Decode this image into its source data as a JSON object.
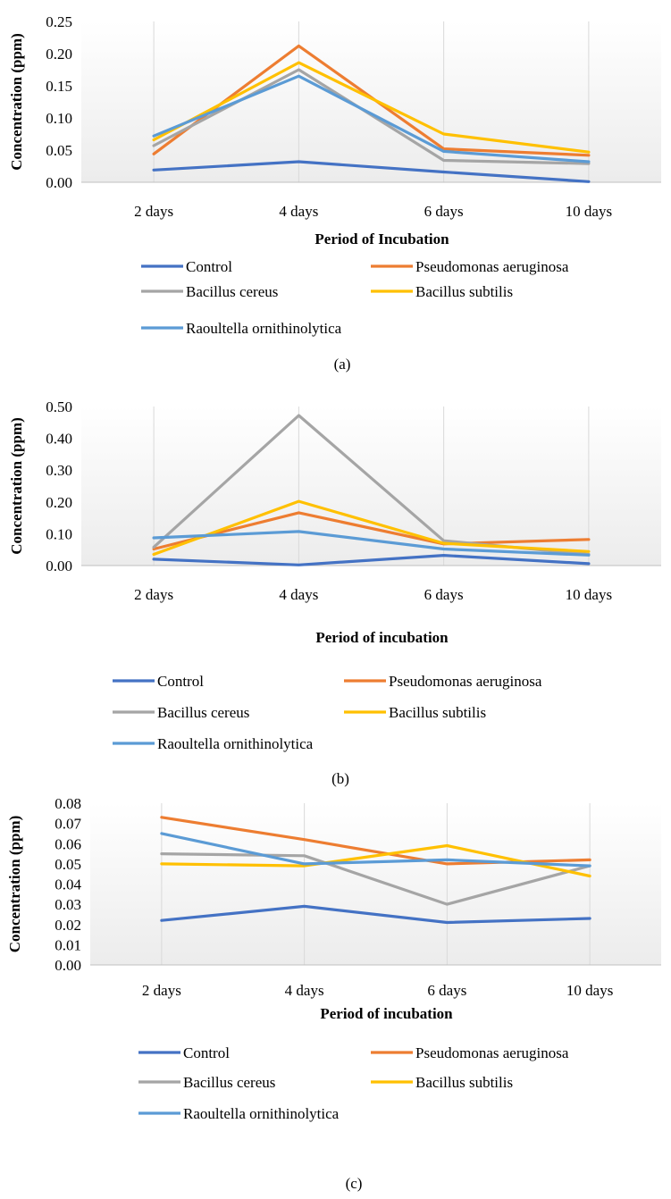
{
  "colors": {
    "control": "#4472C4",
    "pseudomonas": "#ED7D31",
    "cereus": "#A5A5A5",
    "subtilis": "#FFC000",
    "raoultella": "#5B9BD5",
    "grid": "#d9d9d9",
    "axis": "#bfbfbf"
  },
  "chart_data": [
    {
      "type": "line",
      "caption": "(a)",
      "xlabel": "Period of Incubation",
      "ylabel": "Concentration (ppm)",
      "categories": [
        "2 days",
        "4 days",
        "6 days",
        "10 days"
      ],
      "ylim": [
        0,
        0.25
      ],
      "yticks": [
        "0.00",
        "0.05",
        "0.10",
        "0.15",
        "0.20",
        "0.25"
      ],
      "gridlines": "vertical",
      "legend_position": "bottom",
      "series": [
        {
          "name": "Control",
          "color_key": "control",
          "values": [
            0.019,
            0.032,
            0.016,
            0.001
          ]
        },
        {
          "name": "Pseudomonas aeruginosa",
          "color_key": "pseudomonas",
          "values": [
            0.044,
            0.212,
            0.052,
            0.042
          ]
        },
        {
          "name": "Bacillus cereus",
          "color_key": "cereus",
          "values": [
            0.057,
            0.175,
            0.034,
            0.029
          ]
        },
        {
          "name": "Bacillus subtilis",
          "color_key": "subtilis",
          "values": [
            0.066,
            0.186,
            0.075,
            0.047
          ]
        },
        {
          "name": "Raoultella ornithinolytica",
          "color_key": "raoultella",
          "values": [
            0.072,
            0.165,
            0.048,
            0.032
          ]
        }
      ]
    },
    {
      "type": "line",
      "caption": "(b)",
      "xlabel": "Period of incubation",
      "ylabel": "Concentration (ppm)",
      "categories": [
        "2 days",
        "4 days",
        "6 days",
        "10 days"
      ],
      "ylim": [
        0,
        0.5
      ],
      "yticks": [
        "0.00",
        "0.10",
        "0.20",
        "0.30",
        "0.40",
        "0.50"
      ],
      "gridlines": "vertical",
      "legend_position": "bottom",
      "series": [
        {
          "name": "Control",
          "color_key": "control",
          "values": [
            0.02,
            0.002,
            0.032,
            0.006
          ]
        },
        {
          "name": "Pseudomonas aeruginosa",
          "color_key": "pseudomonas",
          "values": [
            0.052,
            0.166,
            0.068,
            0.082
          ]
        },
        {
          "name": "Bacillus cereus",
          "color_key": "cereus",
          "values": [
            0.058,
            0.472,
            0.078,
            0.035
          ]
        },
        {
          "name": "Bacillus subtilis",
          "color_key": "subtilis",
          "values": [
            0.035,
            0.202,
            0.07,
            0.044
          ]
        },
        {
          "name": "Raoultella ornithinolytica",
          "color_key": "raoultella",
          "values": [
            0.087,
            0.107,
            0.052,
            0.033
          ]
        }
      ]
    },
    {
      "type": "line",
      "caption": "(c)",
      "xlabel": "Period of incubation",
      "ylabel": "Concentration (ppm)",
      "categories": [
        "2 days",
        "4 days",
        "6 days",
        "10 days"
      ],
      "ylim": [
        0,
        0.08
      ],
      "yticks": [
        "0.00",
        "0.01",
        "0.02",
        "0.03",
        "0.04",
        "0.05",
        "0.06",
        "0.07",
        "0.08"
      ],
      "gridlines": "vertical",
      "legend_position": "bottom",
      "series": [
        {
          "name": "Control",
          "color_key": "control",
          "values": [
            0.022,
            0.029,
            0.021,
            0.023
          ]
        },
        {
          "name": "Pseudomonas aeruginosa",
          "color_key": "pseudomonas",
          "values": [
            0.073,
            0.062,
            0.05,
            0.052
          ]
        },
        {
          "name": "Bacillus cereus",
          "color_key": "cereus",
          "values": [
            0.055,
            0.054,
            0.03,
            0.049
          ]
        },
        {
          "name": "Bacillus subtilis",
          "color_key": "subtilis",
          "values": [
            0.05,
            0.049,
            0.059,
            0.044
          ]
        },
        {
          "name": "Raoultella ornithinolytica",
          "color_key": "raoultella",
          "values": [
            0.065,
            0.05,
            0.052,
            0.049
          ]
        }
      ]
    }
  ]
}
